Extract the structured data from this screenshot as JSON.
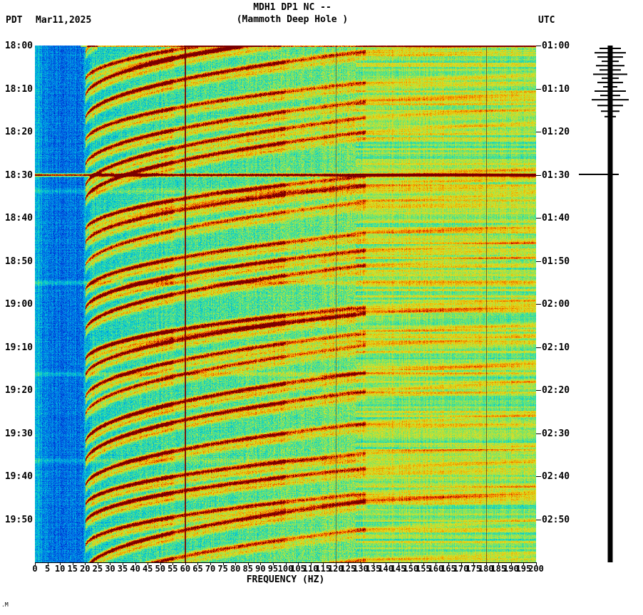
{
  "header": {
    "title": "MDH1 DP1 NC --",
    "subtitle": "(Mammoth Deep Hole )",
    "tz_left": "PDT",
    "date": "Mar11,2025",
    "tz_right": "UTC"
  },
  "axes": {
    "left_times": [
      "18:00",
      "18:10",
      "18:20",
      "18:30",
      "18:40",
      "18:50",
      "19:00",
      "19:10",
      "19:20",
      "19:30",
      "19:40",
      "19:50"
    ],
    "right_times": [
      "01:00",
      "01:10",
      "01:20",
      "01:30",
      "01:40",
      "01:50",
      "02:00",
      "02:10",
      "02:20",
      "02:30",
      "02:40",
      "02:50"
    ],
    "freq_ticks": [
      0,
      5,
      10,
      15,
      20,
      25,
      30,
      35,
      40,
      45,
      50,
      55,
      60,
      65,
      70,
      75,
      80,
      85,
      90,
      95,
      100,
      105,
      110,
      115,
      120,
      125,
      130,
      135,
      140,
      145,
      150,
      155,
      160,
      165,
      170,
      175,
      180,
      185,
      190,
      195,
      200
    ],
    "freq_label": "FREQUENCY (HZ)"
  },
  "corner_mark": ".M",
  "colors": {
    "bg": "#ffffff",
    "fg": "#000000",
    "amplitude_bar": "#000000"
  },
  "chart_data": {
    "type": "heatmap",
    "title": "MDH1 DP1 NC -- (Mammoth Deep Hole ) seismic spectrogram",
    "xlabel": "FREQUENCY (HZ)",
    "x_range_hz": [
      0,
      200
    ],
    "x_tick_step_hz": 5,
    "time_axis_left_pdt": {
      "start": "18:00",
      "end": "20:00",
      "tick_minutes": 10
    },
    "time_axis_right_utc": {
      "start": "01:00",
      "end": "03:00",
      "tick_minutes": 10
    },
    "duration_seconds": 7200,
    "colormap_stops": [
      {
        "v": 0.0,
        "c": "#00008F"
      },
      {
        "v": 0.1,
        "c": "#0033D0"
      },
      {
        "v": 0.22,
        "c": "#0077E8"
      },
      {
        "v": 0.34,
        "c": "#00C0D8"
      },
      {
        "v": 0.46,
        "c": "#38E0A0"
      },
      {
        "v": 0.56,
        "c": "#90E455"
      },
      {
        "v": 0.66,
        "c": "#D6E02A"
      },
      {
        "v": 0.76,
        "c": "#F0B400"
      },
      {
        "v": 0.86,
        "c": "#EE6000"
      },
      {
        "v": 0.93,
        "c": "#D42000"
      },
      {
        "v": 1.0,
        "c": "#7A0000"
      }
    ],
    "background_bands": [
      {
        "hz": [
          0,
          18
        ],
        "level": "low energy (blue)"
      },
      {
        "hz": [
          18,
          130
        ],
        "level": "medium energy (cyan-green) with repeating red tremor arcs"
      },
      {
        "hz": [
          130,
          200
        ],
        "level": "high energy (yellow-green) with horizontal streaking"
      }
    ],
    "power_lines": [
      {
        "hz": 60,
        "color": "#7A0000",
        "width": 2,
        "alpha": 0.9
      },
      {
        "hz": 120,
        "color": "#383838",
        "width": 1,
        "alpha": 0.6
      },
      {
        "hz": 180,
        "color": "#402018",
        "width": 1,
        "alpha": 0.6
      }
    ],
    "event_row_time_s": 1800,
    "event_row_label": "broadband event line at 18:30 PDT / 01:30 UTC",
    "light_stripe_times_s": [
      2020,
      3300,
      4570,
      5780
    ],
    "tremor_arcs": {
      "description": "repeating upward-gliding harmonic tremor arcs, steep at low frequency flattening toward high frequency",
      "first_start_s": 120,
      "period_s": 300,
      "freq_span_hz": [
        20,
        132
      ],
      "sweep_duration_s": 850
    },
    "amplitude_bar": {
      "events": [
        {
          "s": 40,
          "l": 15,
          "r": 15
        },
        {
          "s": 100,
          "l": 22,
          "r": 22
        },
        {
          "s": 160,
          "l": 18,
          "r": 18
        },
        {
          "s": 220,
          "l": 12,
          "r": 12
        },
        {
          "s": 280,
          "l": 20,
          "r": 20
        },
        {
          "s": 340,
          "l": 15,
          "r": 15
        },
        {
          "s": 400,
          "l": 24,
          "r": 24
        },
        {
          "s": 455,
          "l": 12,
          "r": 12
        },
        {
          "s": 515,
          "l": 18,
          "r": 18
        },
        {
          "s": 575,
          "l": 10,
          "r": 10
        },
        {
          "s": 635,
          "l": 22,
          "r": 22
        },
        {
          "s": 695,
          "l": 14,
          "r": 14
        },
        {
          "s": 755,
          "l": 26,
          "r": 26
        },
        {
          "s": 835,
          "l": 18,
          "r": 18
        },
        {
          "s": 915,
          "l": 13,
          "r": 13
        },
        {
          "s": 990,
          "l": 8,
          "r": 8
        },
        {
          "s": 1795,
          "l": 44,
          "r": 12
        }
      ]
    }
  }
}
